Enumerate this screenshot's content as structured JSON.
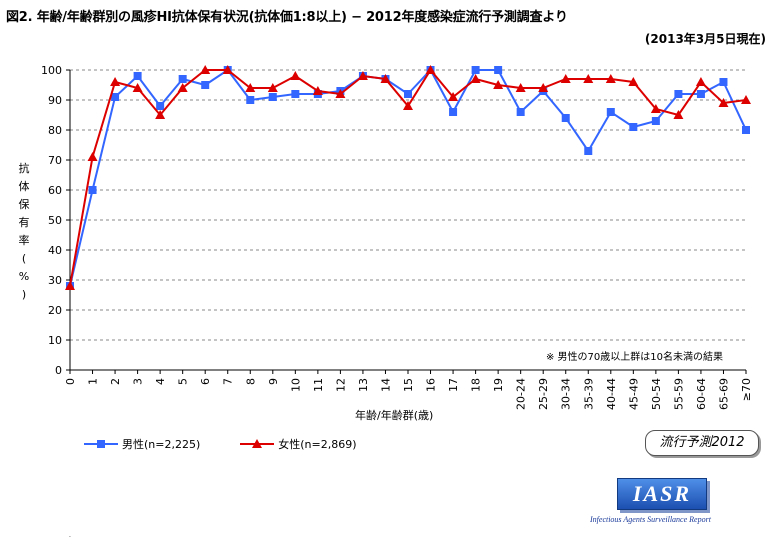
{
  "header": {
    "title": "図2. 年齢/年齢群別の風疹HI抗体保有状況(抗体価1:8以上) − 2012年度感染症流行予測調査より",
    "subtitle": "(2013年3月5日現在)"
  },
  "annotation": "※ 男性の70歳以上群は10名未満の結果",
  "badge": "流行予測2012",
  "logo": {
    "text": "IASR",
    "subtitle": "Infectious Agents Surveillance Report"
  },
  "chart_data": {
    "type": "line",
    "title": "図2. 年齢/年齢群別の風疹HI抗体保有状況(抗体価1:8以上) − 2012年度感染症流行予測調査より",
    "subtitle": "(2013年3月5日現在)",
    "xlabel": "年齢/年齢群(歳)",
    "ylabel": "抗体保有率(%)",
    "ylabel_chars": [
      "抗",
      "体",
      "保",
      "有",
      "率",
      "(",
      "%",
      ")"
    ],
    "ylim": [
      0,
      100
    ],
    "yticks": [
      0,
      10,
      20,
      30,
      40,
      50,
      60,
      70,
      80,
      90,
      100
    ],
    "grid": true,
    "legend_position": "bottom-left",
    "categories": [
      "0",
      "1",
      "2",
      "3",
      "4",
      "5",
      "6",
      "7",
      "8",
      "9",
      "10",
      "11",
      "12",
      "13",
      "14",
      "15",
      "16",
      "17",
      "18",
      "19",
      "20-24",
      "25-29",
      "30-34",
      "35-39",
      "40-44",
      "45-49",
      "50-54",
      "55-59",
      "60-64",
      "65-69",
      "≥70"
    ],
    "series": [
      {
        "name": "男性(n=2,225)",
        "color": "#3366ff",
        "marker": "square",
        "values": [
          28,
          60,
          91,
          98,
          88,
          97,
          95,
          100,
          90,
          91,
          92,
          92,
          93,
          98,
          97,
          92,
          100,
          86,
          100,
          100,
          86,
          93,
          84,
          73,
          86,
          81,
          83,
          92,
          92,
          96,
          80
        ]
      },
      {
        "name": "女性(n=2,869)",
        "color": "#dd0000",
        "marker": "triangle",
        "values": [
          28,
          71,
          96,
          94,
          85,
          94,
          100,
          100,
          94,
          94,
          98,
          93,
          92,
          98,
          97,
          88,
          100,
          91,
          97,
          95,
          94,
          94,
          97,
          97,
          97,
          96,
          87,
          85,
          96,
          89,
          90
        ]
      }
    ]
  }
}
